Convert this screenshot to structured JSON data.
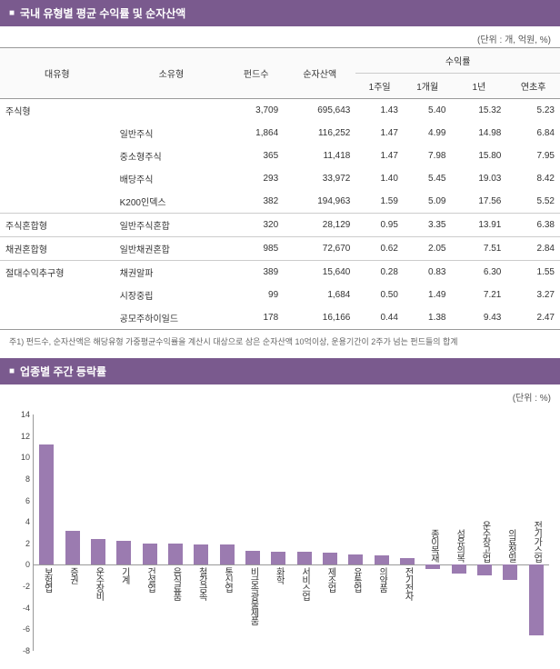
{
  "table_section": {
    "title": "국내 유형별 평균 수익률 및 순자산액",
    "unit": "(단위 : 개, 억원, %)",
    "headers": {
      "col1": "대유형",
      "col2": "소유형",
      "col3": "펀드수",
      "col4": "순자산액",
      "group": "수익률",
      "sub1": "1주일",
      "sub2": "1개월",
      "sub3": "1년",
      "sub4": "연초후"
    },
    "rows": [
      {
        "cat": "주식형",
        "sub": "",
        "funds": "3,709",
        "nav": "695,643",
        "w1": "1.43",
        "m1": "5.40",
        "y1": "15.32",
        "ytd": "5.23",
        "isCat": true
      },
      {
        "cat": "",
        "sub": "일반주식",
        "funds": "1,864",
        "nav": "116,252",
        "w1": "1.47",
        "m1": "4.99",
        "y1": "14.98",
        "ytd": "6.84"
      },
      {
        "cat": "",
        "sub": "중소형주식",
        "funds": "365",
        "nav": "11,418",
        "w1": "1.47",
        "m1": "7.98",
        "y1": "15.80",
        "ytd": "7.95"
      },
      {
        "cat": "",
        "sub": "배당주식",
        "funds": "293",
        "nav": "33,972",
        "w1": "1.40",
        "m1": "5.45",
        "y1": "19.03",
        "ytd": "8.42"
      },
      {
        "cat": "",
        "sub": "K200인덱스",
        "funds": "382",
        "nav": "194,963",
        "w1": "1.59",
        "m1": "5.09",
        "y1": "17.56",
        "ytd": "5.52"
      },
      {
        "cat": "주식혼합형",
        "sub": "일반주식혼합",
        "funds": "320",
        "nav": "28,129",
        "w1": "0.95",
        "m1": "3.35",
        "y1": "13.91",
        "ytd": "6.38",
        "isCat": true
      },
      {
        "cat": "채권혼합형",
        "sub": "일반채권혼합",
        "funds": "985",
        "nav": "72,670",
        "w1": "0.62",
        "m1": "2.05",
        "y1": "7.51",
        "ytd": "2.84",
        "isCat": true
      },
      {
        "cat": "절대수익추구형",
        "sub": "채권알파",
        "funds": "389",
        "nav": "15,640",
        "w1": "0.28",
        "m1": "0.83",
        "y1": "6.30",
        "ytd": "1.55",
        "isCat": true
      },
      {
        "cat": "",
        "sub": "시장중립",
        "funds": "99",
        "nav": "1,684",
        "w1": "0.50",
        "m1": "1.49",
        "y1": "7.21",
        "ytd": "3.27"
      },
      {
        "cat": "",
        "sub": "공모주하이일드",
        "funds": "178",
        "nav": "16,166",
        "w1": "0.44",
        "m1": "1.38",
        "y1": "9.43",
        "ytd": "2.47"
      }
    ],
    "footnote": "주1) 펀드수, 순자산액은 해당유형 가중평균수익률을 계산시 대상으로 삼은 순자산액 10억이상, 운용기간이 2주가 넘는 펀드들의 합계"
  },
  "chart_section": {
    "title": "업종별 주간 등락률",
    "unit": "(단위 : %)",
    "type": "bar",
    "ylim": [
      -8,
      14
    ],
    "ytick_step": 2,
    "bar_color_pos": "#9b7bb0",
    "bar_color_neg": "#9b7bb0",
    "grid_color": "#999",
    "background_color": "#ffffff",
    "categories": [
      "보험업",
      "증권",
      "운수장비",
      "기계",
      "건설업",
      "음식료품",
      "철강금속",
      "통신업",
      "비금속광물제품",
      "화학",
      "서비스업",
      "제조업",
      "유통업",
      "의약품",
      "전기전자",
      "종이목재",
      "섬유의복",
      "운수창고업",
      "의료정밀",
      "전기가스업"
    ],
    "values": [
      11.2,
      3.2,
      2.4,
      2.2,
      2.0,
      2.0,
      1.9,
      1.9,
      1.3,
      1.2,
      1.2,
      1.1,
      1.0,
      0.9,
      0.6,
      -0.4,
      -0.8,
      -1.0,
      -1.4,
      -6.6
    ]
  }
}
